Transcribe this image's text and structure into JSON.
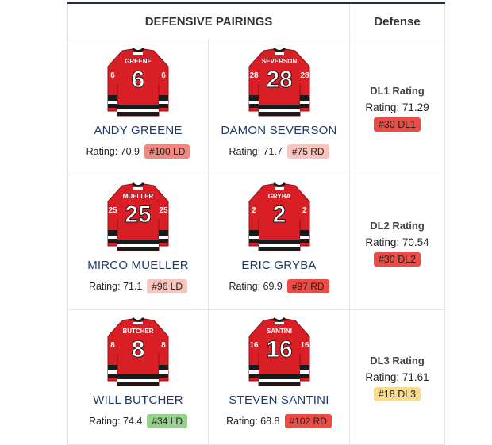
{
  "header": {
    "pairings_title": "DEFENSIVE PAIRINGS",
    "defense_title": "Defense"
  },
  "pairs": [
    {
      "players": [
        {
          "nameplate": "GREENE",
          "number": "6",
          "name": "ANDY GREENE",
          "rating_text": "Rating: 70.9",
          "badge": "#100 LD",
          "badge_color": "#f08a80"
        },
        {
          "nameplate": "SEVERSON",
          "number": "28",
          "name": "DAMON SEVERSON",
          "rating_text": "Rating: 71.7",
          "badge": "#75 RD",
          "badge_color": "#f9c4bd"
        }
      ],
      "defense": {
        "title": "DL1 Rating",
        "rating_text": "Rating: 71.29",
        "badge": "#30 DL1",
        "badge_color": "#ef4b45"
      }
    },
    {
      "players": [
        {
          "nameplate": "MUELLER",
          "number": "25",
          "name": "MIRCO MUELLER",
          "rating_text": "Rating: 71.1",
          "badge": "#96 LD",
          "badge_color": "#f9c4bd"
        },
        {
          "nameplate": "GRYBA",
          "number": "2",
          "name": "ERIC GRYBA",
          "rating_text": "Rating: 69.9",
          "badge": "#97 RD",
          "badge_color": "#ef4b45"
        }
      ],
      "defense": {
        "title": "DL2 Rating",
        "rating_text": "Rating: 70.54",
        "badge": "#30 DL2",
        "badge_color": "#ef4b45"
      }
    },
    {
      "players": [
        {
          "nameplate": "BUTCHER",
          "number": "8",
          "name": "WILL BUTCHER",
          "rating_text": "Rating: 74.4",
          "badge": "#34 LD",
          "badge_color": "#94d08c"
        },
        {
          "nameplate": "SANTINI",
          "number": "16",
          "name": "STEVEN SANTINI",
          "rating_text": "Rating: 68.8",
          "badge": "#102 RD",
          "badge_color": "#ef4b45"
        }
      ],
      "defense": {
        "title": "DL3 Rating",
        "rating_text": "Rating: 71.61",
        "badge": "#18 DL3",
        "badge_color": "#fbdc8a"
      }
    }
  ],
  "icons": {
    "jersey": "hockey-jersey-icon"
  },
  "colors": {
    "jersey_red": "#d91f26",
    "jersey_black": "#1a1a1a",
    "name_blue": "#1f3a6b",
    "header_border": "#1f3146"
  }
}
